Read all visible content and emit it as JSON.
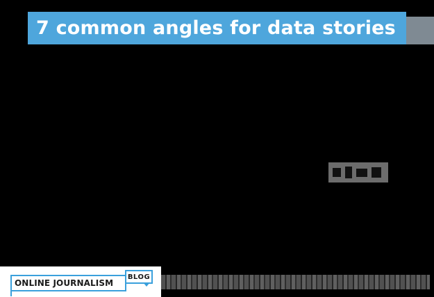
{
  "header": {
    "title": "7 common angles for data stories"
  },
  "footer": {
    "logo_text": "ONLINE JOURNALISM",
    "logo_badge": "BLOG"
  },
  "colors": {
    "title_bar": "#4ea6dc",
    "title_text": "#ffffff",
    "background": "#000000",
    "logo_border": "#3aa0dc"
  }
}
